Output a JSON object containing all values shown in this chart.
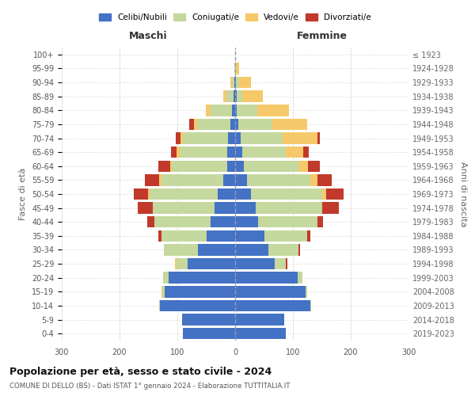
{
  "age_groups": [
    "0-4",
    "5-9",
    "10-14",
    "15-19",
    "20-24",
    "25-29",
    "30-34",
    "35-39",
    "40-44",
    "45-49",
    "50-54",
    "55-59",
    "60-64",
    "65-69",
    "70-74",
    "75-79",
    "80-84",
    "85-89",
    "90-94",
    "95-99",
    "100+"
  ],
  "birth_years": [
    "2019-2023",
    "2014-2018",
    "2009-2013",
    "2004-2008",
    "1999-2003",
    "1994-1998",
    "1989-1993",
    "1984-1988",
    "1979-1983",
    "1974-1978",
    "1969-1973",
    "1964-1968",
    "1959-1963",
    "1954-1958",
    "1949-1953",
    "1944-1948",
    "1939-1943",
    "1934-1938",
    "1929-1933",
    "1924-1928",
    "≤ 1923"
  ],
  "maschi": {
    "celibi": [
      90,
      92,
      130,
      122,
      115,
      82,
      65,
      50,
      42,
      35,
      30,
      20,
      14,
      14,
      12,
      8,
      5,
      3,
      1,
      0,
      0
    ],
    "coniugati": [
      0,
      0,
      2,
      4,
      10,
      20,
      58,
      78,
      98,
      108,
      118,
      108,
      95,
      82,
      78,
      58,
      38,
      12,
      5,
      1,
      0
    ],
    "vedovi": [
      0,
      0,
      0,
      2,
      0,
      2,
      0,
      0,
      0,
      0,
      3,
      3,
      4,
      5,
      5,
      5,
      8,
      5,
      2,
      0,
      0
    ],
    "divorziati": [
      0,
      0,
      0,
      0,
      0,
      0,
      0,
      5,
      12,
      25,
      25,
      25,
      20,
      10,
      8,
      8,
      0,
      0,
      0,
      0,
      0
    ]
  },
  "femmine": {
    "nubili": [
      88,
      85,
      130,
      122,
      108,
      68,
      58,
      50,
      40,
      35,
      28,
      20,
      15,
      12,
      10,
      6,
      3,
      3,
      1,
      0,
      0
    ],
    "coniugate": [
      0,
      0,
      2,
      3,
      8,
      20,
      52,
      75,
      102,
      115,
      122,
      110,
      96,
      76,
      72,
      58,
      35,
      10,
      6,
      2,
      0
    ],
    "vedove": [
      0,
      0,
      0,
      0,
      0,
      0,
      0,
      0,
      0,
      0,
      8,
      12,
      15,
      30,
      60,
      60,
      55,
      35,
      20,
      5,
      0
    ],
    "divorziate": [
      0,
      0,
      0,
      0,
      0,
      2,
      2,
      5,
      10,
      30,
      30,
      25,
      20,
      10,
      5,
      0,
      0,
      0,
      0,
      0,
      0
    ]
  },
  "colors": {
    "celibi_nubili": "#4472C4",
    "coniugati": "#C5D89D",
    "vedovi": "#F5C96A",
    "divorziati": "#C0392B"
  },
  "xlim": 300,
  "title": "Popolazione per età, sesso e stato civile - 2024",
  "subtitle": "COMUNE DI DELLO (BS) - Dati ISTAT 1° gennaio 2024 - Elaborazione TUTTITALIA.IT",
  "legend_labels": [
    "Celibi/Nubili",
    "Coniugati/e",
    "Vedovi/e",
    "Divorziati/e"
  ],
  "ylabel_left": "Fasce di età",
  "ylabel_right": "Anni di nascita"
}
